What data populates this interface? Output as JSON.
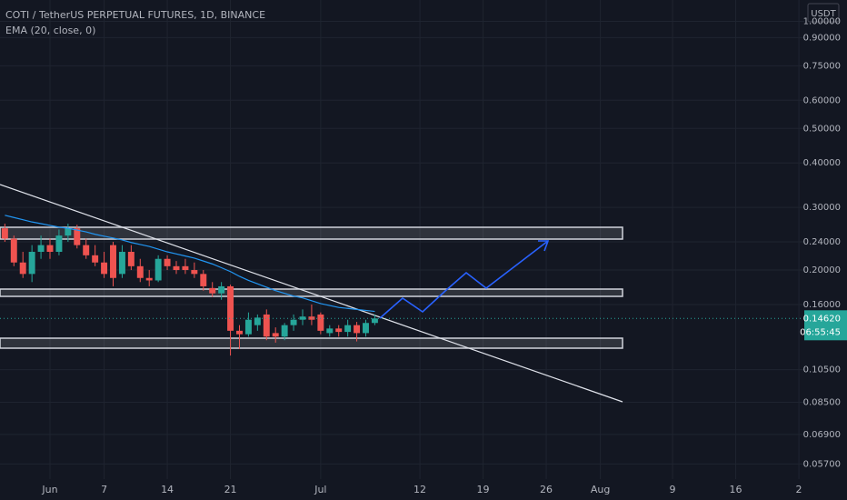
{
  "chart_data": {
    "type": "candlestick",
    "title": "COTI / TetherUS PERPETUAL FUTURES, 1D, BINANCE",
    "indicator": "EMA (20, close, 0)",
    "currency": "USDT",
    "log_scale": true,
    "grid": true,
    "up_color": "#26a69a",
    "down_color": "#ef5350",
    "ema_color": "#2196f3",
    "open": [
      0.262,
      0.245,
      0.21,
      0.195,
      0.225,
      0.235,
      0.225,
      0.25,
      0.262,
      0.235,
      0.22,
      0.21,
      0.235,
      0.195,
      0.225,
      0.205,
      0.19,
      0.187,
      0.215,
      0.205,
      0.205,
      0.2,
      0.195,
      0.178,
      0.172,
      0.18,
      0.135,
      0.132,
      0.14,
      0.15,
      0.133,
      0.13,
      0.14,
      0.145,
      0.148,
      0.15,
      0.133,
      0.137,
      0.134,
      0.14,
      0.133,
      0.142
    ],
    "high": [
      0.27,
      0.25,
      0.225,
      0.235,
      0.25,
      0.245,
      0.26,
      0.27,
      0.268,
      0.245,
      0.235,
      0.225,
      0.24,
      0.235,
      0.235,
      0.215,
      0.2,
      0.22,
      0.22,
      0.212,
      0.215,
      0.21,
      0.2,
      0.185,
      0.185,
      0.182,
      0.14,
      0.152,
      0.15,
      0.155,
      0.138,
      0.142,
      0.15,
      0.155,
      0.16,
      0.152,
      0.14,
      0.14,
      0.145,
      0.143,
      0.145,
      0.15
    ],
    "low": [
      0.24,
      0.205,
      0.19,
      0.185,
      0.215,
      0.215,
      0.22,
      0.24,
      0.23,
      0.215,
      0.205,
      0.19,
      0.18,
      0.19,
      0.2,
      0.185,
      0.18,
      0.185,
      0.2,
      0.195,
      0.195,
      0.19,
      0.175,
      0.168,
      0.165,
      0.115,
      0.12,
      0.13,
      0.135,
      0.127,
      0.125,
      0.127,
      0.135,
      0.14,
      0.14,
      0.132,
      0.13,
      0.13,
      0.13,
      0.126,
      0.13,
      0.14
    ],
    "close": [
      0.245,
      0.21,
      0.195,
      0.225,
      0.235,
      0.225,
      0.25,
      0.262,
      0.235,
      0.22,
      0.21,
      0.195,
      0.19,
      0.225,
      0.205,
      0.19,
      0.187,
      0.215,
      0.205,
      0.2,
      0.2,
      0.195,
      0.18,
      0.172,
      0.18,
      0.135,
      0.132,
      0.145,
      0.147,
      0.13,
      0.13,
      0.14,
      0.145,
      0.148,
      0.145,
      0.135,
      0.137,
      0.134,
      0.14,
      0.133,
      0.142,
      0.1462
    ],
    "ema": [
      0.285,
      0.281,
      0.277,
      0.273,
      0.27,
      0.267,
      0.264,
      0.262,
      0.259,
      0.256,
      0.252,
      0.249,
      0.246,
      0.243,
      0.239,
      0.236,
      0.233,
      0.229,
      0.225,
      0.222,
      0.219,
      0.216,
      0.212,
      0.208,
      0.203,
      0.198,
      0.192,
      0.187,
      0.183,
      0.179,
      0.175,
      0.172,
      0.169,
      0.167,
      0.164,
      0.161,
      0.159,
      0.157,
      0.156,
      0.155,
      0.154,
      0.153
    ],
    "last_price": {
      "value": 0.1462,
      "label": "0.14620"
    },
    "countdown": "06:55:45",
    "ylim": [
      0.0517,
      1.148
    ],
    "yticks": [
      {
        "value": 1.0,
        "label": "1.00000"
      },
      {
        "value": 0.9,
        "label": "0.90000"
      },
      {
        "value": 0.75,
        "label": "0.75000"
      },
      {
        "value": 0.6,
        "label": "0.60000"
      },
      {
        "value": 0.5,
        "label": "0.50000"
      },
      {
        "value": 0.4,
        "label": "0.40000"
      },
      {
        "value": 0.3,
        "label": "0.30000"
      },
      {
        "value": 0.24,
        "label": "0.24000"
      },
      {
        "value": 0.2,
        "label": "0.20000"
      },
      {
        "value": 0.16,
        "label": "0.16000"
      },
      {
        "value": 0.105,
        "label": "0.10500"
      },
      {
        "value": 0.085,
        "label": "0.08500"
      },
      {
        "value": 0.069,
        "label": "0.06900"
      },
      {
        "value": 0.057,
        "label": "0.05700"
      }
    ],
    "xlim": [
      -0.54,
      88.6
    ],
    "xticks": [
      {
        "value": 5,
        "label": "Jun"
      },
      {
        "value": 11,
        "label": "7"
      },
      {
        "value": 18,
        "label": "14"
      },
      {
        "value": 25,
        "label": "21"
      },
      {
        "value": 35,
        "label": "Jul"
      },
      {
        "value": 46,
        "label": "12"
      },
      {
        "value": 53,
        "label": "19"
      },
      {
        "value": 60,
        "label": "26"
      },
      {
        "value": 66,
        "label": "Aug"
      },
      {
        "value": 74,
        "label": "9"
      },
      {
        "value": 81,
        "label": "16"
      },
      {
        "value": 88,
        "label": "2"
      }
    ]
  }
}
